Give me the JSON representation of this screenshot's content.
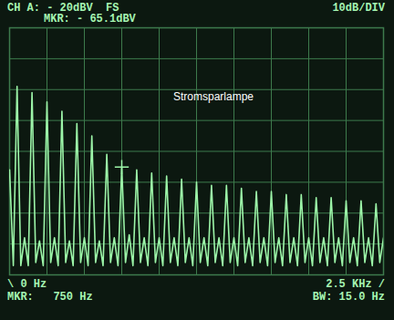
{
  "chart_data": {
    "type": "line",
    "color": "#9cf5a8",
    "grid": true,
    "tick_labels": false,
    "annotations": {
      "top_left": "CH A: - 20dBV  FS",
      "top_right": "10dB/DIV",
      "marker_level": "MKR: - 65.1dBV",
      "center": "Stromsparlampe",
      "bottom_left": "\\ 0 Hz",
      "marker_freq": "MKR:   750 Hz",
      "bottom_right": "2.5 KHz /",
      "bandwidth": "BW: 15.0 Hz"
    },
    "marker_point": {
      "x": 750,
      "y": -65.1
    },
    "xlim": [
      0,
      2500
    ],
    "ylim": [
      -100,
      -20
    ],
    "xticks": [
      0,
      250,
      500,
      750,
      1000,
      1250,
      1500,
      1750,
      2000,
      2250,
      2500
    ],
    "yticks": [
      -100,
      -90,
      -80,
      -70,
      -60,
      -50,
      -40,
      -30,
      -20
    ],
    "x": [
      0,
      25,
      50,
      75,
      100,
      125,
      150,
      175,
      200,
      225,
      250,
      275,
      300,
      325,
      350,
      375,
      400,
      425,
      450,
      475,
      500,
      525,
      550,
      575,
      600,
      625,
      650,
      675,
      700,
      725,
      750,
      775,
      800,
      825,
      850,
      875,
      900,
      925,
      950,
      975,
      1000,
      1025,
      1050,
      1075,
      1100,
      1125,
      1150,
      1175,
      1200,
      1225,
      1250,
      1275,
      1300,
      1325,
      1350,
      1375,
      1400,
      1425,
      1450,
      1475,
      1500,
      1525,
      1550,
      1575,
      1600,
      1625,
      1650,
      1675,
      1700,
      1725,
      1750,
      1775,
      1800,
      1825,
      1850,
      1875,
      1900,
      1925,
      1950,
      1975,
      2000,
      2025,
      2050,
      2075,
      2100,
      2125,
      2150,
      2175,
      2200,
      2225,
      2250,
      2275,
      2300,
      2325,
      2350,
      2375,
      2400,
      2425,
      2450,
      2475,
      2500
    ],
    "values": [
      -66,
      -97,
      -39,
      -97,
      -88,
      -97,
      -41,
      -96,
      -89,
      -97,
      -44,
      -96,
      -88,
      -97,
      -47,
      -96,
      -89,
      -97,
      -51,
      -96,
      -88,
      -97,
      -55,
      -96,
      -89,
      -97,
      -61,
      -96,
      -88,
      -97,
      -65.1,
      -96,
      -87,
      -97,
      -66,
      -96,
      -88,
      -97,
      -67,
      -96,
      -88,
      -97,
      -68,
      -96,
      -88,
      -97,
      -69,
      -96,
      -88,
      -97,
      -70,
      -96,
      -88,
      -97,
      -71,
      -96,
      -88,
      -97,
      -71,
      -96,
      -88,
      -97,
      -72,
      -96,
      -88,
      -97,
      -73,
      -96,
      -88,
      -97,
      -73,
      -96,
      -88,
      -97,
      -74,
      -96,
      -88,
      -97,
      -74,
      -96,
      -88,
      -97,
      -75,
      -96,
      -88,
      -97,
      -75,
      -96,
      -88,
      -97,
      -76,
      -96,
      -88,
      -97,
      -76,
      -96,
      -88,
      -97,
      -77,
      -96,
      -88
    ]
  }
}
